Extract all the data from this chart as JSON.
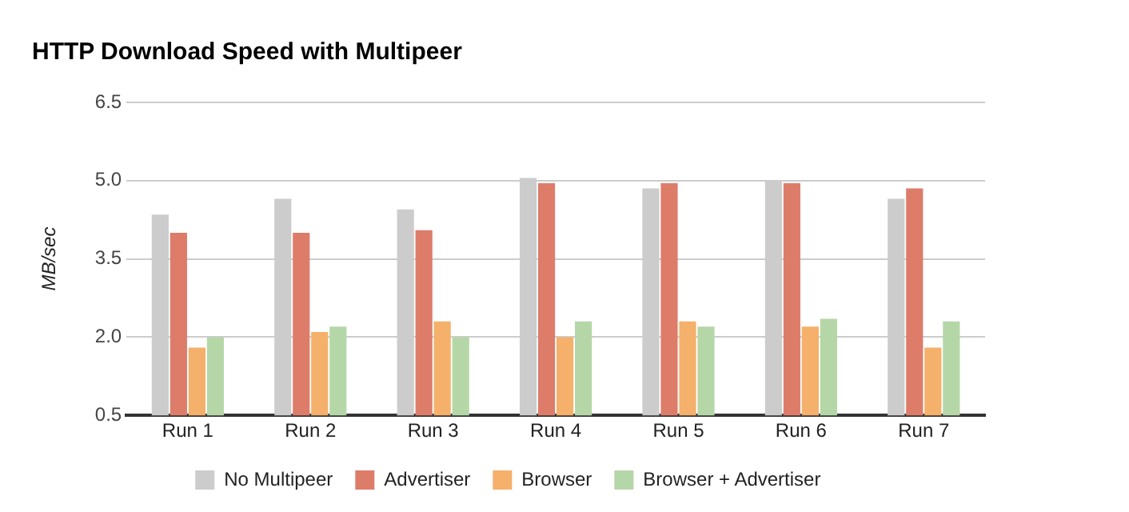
{
  "chart_data": {
    "type": "bar",
    "title": "HTTP Download Speed with Multipeer",
    "ylabel": "MB/sec",
    "categories": [
      "Run 1",
      "Run 2",
      "Run 3",
      "Run 4",
      "Run 5",
      "Run 6",
      "Run 7"
    ],
    "series": [
      {
        "name": "No Multipeer",
        "color": "#cccccc",
        "values": [
          4.35,
          4.65,
          4.45,
          5.05,
          4.85,
          5.0,
          4.65
        ]
      },
      {
        "name": "Advertiser",
        "color": "#de7c6a",
        "values": [
          4.0,
          4.0,
          4.05,
          4.95,
          4.95,
          4.95,
          4.85
        ]
      },
      {
        "name": "Browser",
        "color": "#f5b06b",
        "values": [
          1.8,
          2.1,
          2.3,
          2.0,
          2.3,
          2.2,
          1.8
        ]
      },
      {
        "name": "Browser + Advertiser",
        "color": "#b5d7a8",
        "values": [
          2.0,
          2.2,
          2.0,
          2.3,
          2.2,
          2.35,
          2.3
        ]
      }
    ],
    "ylim": [
      0.5,
      6.5
    ],
    "yticks": [
      {
        "value": 0.5,
        "label": "0.5"
      },
      {
        "value": 2,
        "label": "2.0"
      },
      {
        "value": 3.5,
        "label": "3.5"
      },
      {
        "value": 5,
        "label": "5.0"
      },
      {
        "value": 6.5,
        "label": "6.5"
      }
    ],
    "grid": "y",
    "legend": "bottom"
  }
}
